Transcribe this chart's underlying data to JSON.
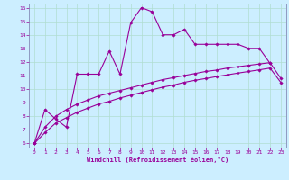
{
  "xlabel": "Windchill (Refroidissement éolien,°C)",
  "background_color": "#cceeff",
  "grid_color": "#b0ddd0",
  "line_color": "#990099",
  "xlim": [
    -0.5,
    23.5
  ],
  "ylim": [
    5.7,
    16.3
  ],
  "xticks": [
    0,
    1,
    2,
    3,
    4,
    5,
    6,
    7,
    8,
    9,
    10,
    11,
    12,
    13,
    14,
    15,
    16,
    17,
    18,
    19,
    20,
    21,
    22,
    23
  ],
  "yticks": [
    6,
    7,
    8,
    9,
    10,
    11,
    12,
    13,
    14,
    15,
    16
  ],
  "series1_x": [
    0,
    1,
    2,
    3,
    4,
    5,
    6,
    7,
    8,
    9,
    10,
    11,
    12,
    13,
    14,
    15,
    16,
    17,
    18,
    19,
    20,
    21,
    22
  ],
  "series1_y": [
    6.0,
    8.5,
    7.8,
    7.2,
    11.1,
    11.1,
    11.1,
    12.8,
    11.1,
    14.9,
    16.0,
    15.7,
    14.0,
    14.0,
    14.4,
    13.3,
    13.3,
    13.3,
    13.3,
    13.3,
    13.0,
    13.0,
    11.9
  ],
  "series2_x": [
    0,
    1,
    2,
    3,
    4,
    5,
    6,
    7,
    8,
    9,
    10,
    11,
    12,
    13,
    14,
    15,
    16,
    17,
    18,
    19,
    20,
    21,
    22,
    23
  ],
  "series2_y": [
    6.0,
    7.2,
    8.0,
    8.5,
    8.9,
    9.2,
    9.5,
    9.7,
    9.9,
    10.1,
    10.3,
    10.5,
    10.7,
    10.85,
    11.0,
    11.15,
    11.3,
    11.4,
    11.55,
    11.65,
    11.75,
    11.85,
    11.95,
    10.8
  ],
  "series3_x": [
    0,
    1,
    2,
    3,
    4,
    5,
    6,
    7,
    8,
    9,
    10,
    11,
    12,
    13,
    14,
    15,
    16,
    17,
    18,
    19,
    20,
    21,
    22,
    23
  ],
  "series3_y": [
    6.0,
    6.8,
    7.5,
    7.9,
    8.3,
    8.6,
    8.9,
    9.1,
    9.35,
    9.55,
    9.75,
    9.95,
    10.15,
    10.3,
    10.5,
    10.65,
    10.78,
    10.92,
    11.05,
    11.18,
    11.3,
    11.42,
    11.55,
    10.5
  ]
}
